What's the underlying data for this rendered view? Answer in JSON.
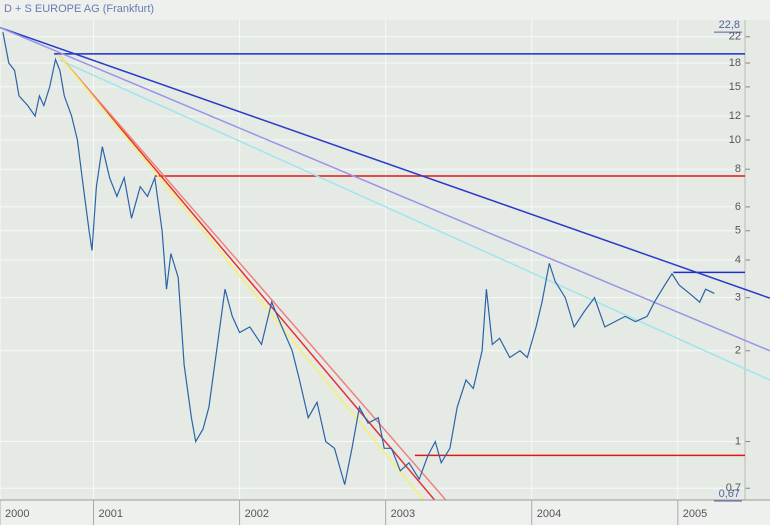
{
  "chart_data": {
    "type": "line",
    "title": "D + S EUROPE AG (Frankfurt)",
    "log_scale": true,
    "grid": true,
    "xlim": [
      2000.36,
      2005.46
    ],
    "xticks": [
      {
        "value": 2000.36,
        "label": "2000"
      },
      2001,
      2002,
      2003,
      2004,
      2005
    ],
    "ylim": [
      0.64,
      25
    ],
    "yticks": [
      22,
      18,
      15,
      12,
      10,
      8,
      6,
      5,
      4,
      3,
      2,
      1,
      {
        "value": 0.7,
        "label": "0,7"
      }
    ],
    "annotations": [
      {
        "value": 22.8,
        "label": "22,8"
      },
      {
        "value": 0.67,
        "label": "0,67"
      }
    ],
    "series": [
      {
        "color": "#2a64a8",
        "x": [
          2000.38,
          2000.42,
          2000.46,
          2000.49,
          2000.55,
          2000.6,
          2000.63,
          2000.66,
          2000.7,
          2000.74,
          2000.77,
          2000.8,
          2000.85,
          2000.89,
          2000.93,
          2000.97,
          2000.99,
          2001.02,
          2001.06,
          2001.11,
          2001.16,
          2001.21,
          2001.26,
          2001.32,
          2001.37,
          2001.42,
          2001.47,
          2001.5,
          2001.53,
          2001.58,
          2001.62,
          2001.67,
          2001.7,
          2001.75,
          2001.79,
          2001.9,
          2001.95,
          2002.0,
          2002.07,
          2002.15,
          2002.22,
          2002.29,
          2002.36,
          2002.41,
          2002.47,
          2002.53,
          2002.59,
          2002.65,
          2002.72,
          2002.77,
          2002.82,
          2002.88,
          2002.95,
          2002.99,
          2003.04,
          2003.1,
          2003.16,
          2003.23,
          2003.29,
          2003.34,
          2003.38,
          2003.44,
          2003.49,
          2003.55,
          2003.6,
          2003.66,
          2003.69,
          2003.73,
          2003.78,
          2003.85,
          2003.92,
          2003.97,
          2004.03,
          2004.07,
          2004.12,
          2004.16,
          2004.23,
          2004.29,
          2004.36,
          2004.43,
          2004.5,
          2004.57,
          2004.64,
          2004.71,
          2004.79,
          2004.84,
          2004.91,
          2004.96,
          2005.01,
          2005.08,
          2005.15,
          2005.19,
          2005.25
        ],
        "values": [
          22.8,
          18,
          17,
          14,
          13,
          12,
          14,
          13,
          15,
          18.5,
          17,
          14,
          12,
          10,
          7,
          5,
          4.3,
          7,
          9.5,
          7.5,
          6.5,
          7.5,
          5.5,
          7,
          6.5,
          7.5,
          5,
          3.2,
          4.2,
          3.5,
          1.8,
          1.2,
          1.0,
          1.1,
          1.3,
          3.2,
          2.6,
          2.3,
          2.4,
          2.1,
          2.9,
          2.4,
          2.0,
          1.6,
          1.2,
          1.35,
          1.0,
          0.95,
          0.72,
          0.95,
          1.3,
          1.15,
          1.2,
          0.95,
          0.95,
          0.8,
          0.85,
          0.75,
          0.9,
          1.0,
          0.85,
          0.95,
          1.3,
          1.6,
          1.5,
          2.0,
          3.2,
          2.1,
          2.2,
          1.9,
          2.0,
          1.9,
          2.4,
          2.9,
          3.9,
          3.4,
          3.0,
          2.4,
          2.7,
          3.0,
          2.4,
          2.5,
          2.6,
          2.5,
          2.6,
          2.9,
          3.3,
          3.6,
          3.3,
          3.1,
          2.9,
          3.2,
          3.1
        ]
      }
    ],
    "trendlines": [
      {
        "color": "#1a2fd0",
        "x": [
          2000.73,
          2005.46
        ],
        "y": [
          19.3,
          19.3
        ]
      },
      {
        "color": "#e01818",
        "x": [
          2001.42,
          2005.46
        ],
        "y": [
          7.6,
          7.6
        ]
      },
      {
        "color": "#e01818",
        "x": [
          2003.2,
          2005.46
        ],
        "y": [
          0.9,
          0.9
        ]
      },
      {
        "color": "#1a2fd0",
        "x": [
          2004.97,
          2005.46
        ],
        "y": [
          3.64,
          3.64
        ]
      },
      {
        "color": "#2a3cc8",
        "x": [
          2000.36,
          2005.63
        ],
        "y": [
          23.6,
          2.99
        ]
      },
      {
        "color": "#9a94e8",
        "x": [
          2000.36,
          2005.63
        ],
        "y": [
          23.6,
          2.0
        ]
      },
      {
        "color": "#9fe6ec",
        "x": [
          2000.77,
          2005.63
        ],
        "y": [
          18.4,
          1.6
        ]
      },
      {
        "color": "#e83030",
        "x": [
          2000.76,
          2003.45
        ],
        "y": [
          19.2,
          0.55
        ]
      },
      {
        "color": "#f08080",
        "x": [
          2000.76,
          2003.53
        ],
        "y": [
          19.2,
          0.55
        ]
      },
      {
        "color": "#f4f070",
        "x": [
          2000.76,
          2003.37
        ],
        "y": [
          19.2,
          0.55
        ]
      }
    ]
  }
}
